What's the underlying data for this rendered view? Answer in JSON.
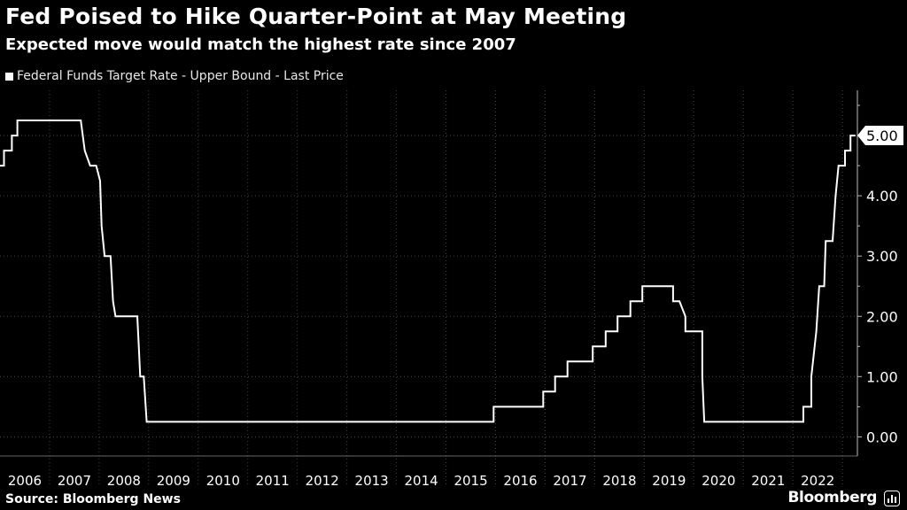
{
  "header": {
    "title": "Fed Poised to Hike Quarter-Point at May Meeting",
    "subtitle": "Expected move would match the highest rate since 2007"
  },
  "footer": {
    "source": "Source: Bloomberg News",
    "brand": "Bloomberg"
  },
  "colors": {
    "background": "#000000",
    "line": "#ffffff",
    "grid": "#444444"
  },
  "chart_data": {
    "type": "line",
    "title": "Fed Poised to Hike Quarter-Point at May Meeting",
    "subtitle": "Expected move would match the highest rate since 2007",
    "xlabel": "",
    "ylabel": "",
    "legend_position": "top-left",
    "grid": true,
    "xlim": [
      2006,
      2023.3
    ],
    "ylim": [
      -0.2,
      5.75
    ],
    "x_ticks": [
      2006,
      2007,
      2008,
      2009,
      2010,
      2011,
      2012,
      2013,
      2014,
      2015,
      2016,
      2017,
      2018,
      2019,
      2020,
      2021,
      2022
    ],
    "x_tick_labels": [
      "2006",
      "2007",
      "2008",
      "2009",
      "2010",
      "2011",
      "2012",
      "2013",
      "2014",
      "2015",
      "2016",
      "2017",
      "2018",
      "2019",
      "2020",
      "2021",
      "2022"
    ],
    "y_ticks": [
      0,
      1,
      2,
      3,
      4,
      5
    ],
    "y_tick_labels": [
      "0.00",
      "1.00",
      "2.00",
      "3.00",
      "4.00",
      "5.00"
    ],
    "last_value_label": "5.00",
    "series": [
      {
        "name": "Federal Funds Target Rate - Upper Bound - Last Price",
        "points": [
          [
            2006.0,
            4.5
          ],
          [
            2006.08,
            4.5
          ],
          [
            2006.08,
            4.75
          ],
          [
            2006.24,
            4.75
          ],
          [
            2006.24,
            5.0
          ],
          [
            2006.35,
            5.0
          ],
          [
            2006.35,
            5.25
          ],
          [
            2007.63,
            5.25
          ],
          [
            2007.71,
            4.75
          ],
          [
            2007.82,
            4.5
          ],
          [
            2007.94,
            4.5
          ],
          [
            2008.02,
            4.25
          ],
          [
            2008.05,
            3.5
          ],
          [
            2008.11,
            3.0
          ],
          [
            2008.23,
            3.0
          ],
          [
            2008.28,
            2.25
          ],
          [
            2008.33,
            2.0
          ],
          [
            2008.77,
            2.0
          ],
          [
            2008.8,
            1.5
          ],
          [
            2008.83,
            1.0
          ],
          [
            2008.9,
            1.0
          ],
          [
            2008.96,
            0.25
          ],
          [
            2015.96,
            0.25
          ],
          [
            2015.96,
            0.5
          ],
          [
            2016.96,
            0.5
          ],
          [
            2016.96,
            0.75
          ],
          [
            2017.2,
            0.75
          ],
          [
            2017.2,
            1.0
          ],
          [
            2017.45,
            1.0
          ],
          [
            2017.45,
            1.25
          ],
          [
            2017.96,
            1.25
          ],
          [
            2017.96,
            1.5
          ],
          [
            2018.22,
            1.5
          ],
          [
            2018.22,
            1.75
          ],
          [
            2018.46,
            1.75
          ],
          [
            2018.46,
            2.0
          ],
          [
            2018.72,
            2.0
          ],
          [
            2018.72,
            2.25
          ],
          [
            2018.96,
            2.25
          ],
          [
            2018.96,
            2.5
          ],
          [
            2019.58,
            2.5
          ],
          [
            2019.58,
            2.25
          ],
          [
            2019.71,
            2.25
          ],
          [
            2019.83,
            2.0
          ],
          [
            2019.83,
            1.75
          ],
          [
            2020.17,
            1.75
          ],
          [
            2020.17,
            1.0
          ],
          [
            2020.21,
            0.25
          ],
          [
            2022.21,
            0.25
          ],
          [
            2022.21,
            0.5
          ],
          [
            2022.37,
            0.5
          ],
          [
            2022.37,
            1.0
          ],
          [
            2022.47,
            1.75
          ],
          [
            2022.53,
            2.5
          ],
          [
            2022.63,
            2.5
          ],
          [
            2022.66,
            3.25
          ],
          [
            2022.8,
            3.25
          ],
          [
            2022.86,
            4.0
          ],
          [
            2022.92,
            4.5
          ],
          [
            2023.05,
            4.5
          ],
          [
            2023.05,
            4.75
          ],
          [
            2023.16,
            4.75
          ],
          [
            2023.16,
            5.0
          ],
          [
            2023.26,
            5.0
          ]
        ]
      }
    ]
  }
}
